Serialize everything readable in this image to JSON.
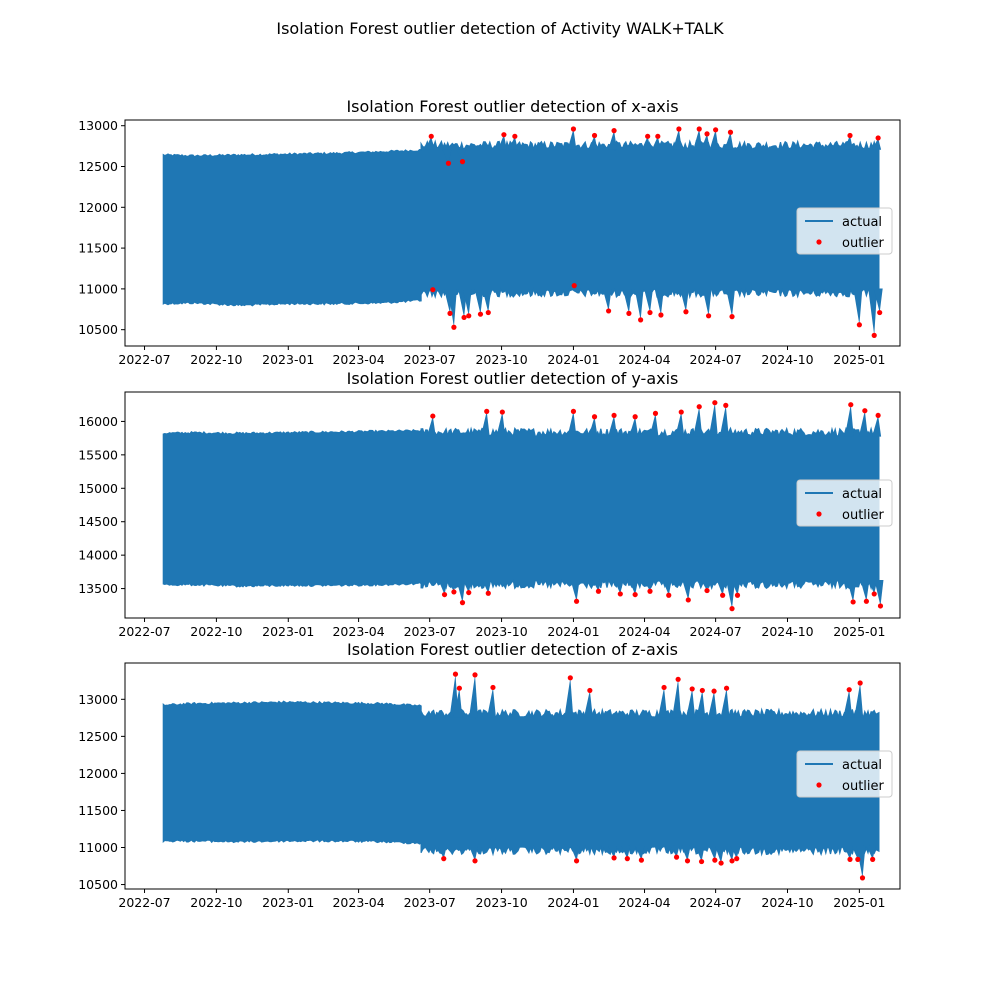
{
  "figure": {
    "title": "Isolation Forest outlier detection of Activity WALK+TALK"
  },
  "legend": {
    "actual_label": "actual",
    "outlier_label": "outlier",
    "placement": "center-right"
  },
  "colors": {
    "line": "#1f77b4",
    "outlier": "#ff0000"
  },
  "x_ticks": [
    "2022-07",
    "2022-10",
    "2023-01",
    "2023-04",
    "2023-07",
    "2023-10",
    "2024-01",
    "2024-04",
    "2024-07",
    "2024-10",
    "2025-01"
  ],
  "chart_data": [
    {
      "type": "line",
      "title": "Isolation Forest outlier detection of x-axis",
      "xlabel": "",
      "ylabel": "",
      "xlim": [
        "2022-06-06",
        "2025-02-22"
      ],
      "ylim": [
        10300,
        13070
      ],
      "y_ticks": [
        10500,
        11000,
        11500,
        12000,
        12500,
        13000
      ],
      "grid": false,
      "envelope": {
        "date": [
          "2022-07-25",
          "2022-09-01",
          "2022-11-01",
          "2023-01-01",
          "2023-03-01",
          "2023-05-01",
          "2023-06-20"
        ],
        "upper": [
          12640,
          12630,
          12640,
          12650,
          12660,
          12680,
          12700
        ],
        "lower": [
          10820,
          10830,
          10800,
          10820,
          10820,
          10830,
          10860
        ]
      },
      "envelope2": {
        "start": "2023-06-20",
        "end": "2025-01-26",
        "upper_base": 12760,
        "lower_base": 10950
      },
      "spikes_up": [
        {
          "date": "2023-07-03",
          "y": 12870
        },
        {
          "date": "2023-07-25",
          "y": 12540
        },
        {
          "date": "2023-08-12",
          "y": 12560
        },
        {
          "date": "2023-10-04",
          "y": 12890
        },
        {
          "date": "2023-10-18",
          "y": 12870
        },
        {
          "date": "2024-01-01",
          "y": 12960
        },
        {
          "date": "2024-01-28",
          "y": 12880
        },
        {
          "date": "2024-02-22",
          "y": 12940
        },
        {
          "date": "2024-04-05",
          "y": 12870
        },
        {
          "date": "2024-04-18",
          "y": 12870
        },
        {
          "date": "2024-05-15",
          "y": 12960
        },
        {
          "date": "2024-06-10",
          "y": 12960
        },
        {
          "date": "2024-06-20",
          "y": 12900
        },
        {
          "date": "2024-07-01",
          "y": 12950
        },
        {
          "date": "2024-07-20",
          "y": 12920
        },
        {
          "date": "2024-12-20",
          "y": 12880
        },
        {
          "date": "2025-01-25",
          "y": 12850
        }
      ],
      "spikes_down": [
        {
          "date": "2023-07-05",
          "y": 10990
        },
        {
          "date": "2023-07-27",
          "y": 10700
        },
        {
          "date": "2023-08-01",
          "y": 10530
        },
        {
          "date": "2023-08-14",
          "y": 10650
        },
        {
          "date": "2023-08-20",
          "y": 10670
        },
        {
          "date": "2023-09-04",
          "y": 10690
        },
        {
          "date": "2023-09-14",
          "y": 10710
        },
        {
          "date": "2024-01-02",
          "y": 11040
        },
        {
          "date": "2024-02-15",
          "y": 10730
        },
        {
          "date": "2024-03-12",
          "y": 10700
        },
        {
          "date": "2024-03-27",
          "y": 10620
        },
        {
          "date": "2024-04-08",
          "y": 10710
        },
        {
          "date": "2024-04-22",
          "y": 10680
        },
        {
          "date": "2024-05-24",
          "y": 10720
        },
        {
          "date": "2024-06-22",
          "y": 10670
        },
        {
          "date": "2024-07-22",
          "y": 10660
        },
        {
          "date": "2025-01-01",
          "y": 10560
        },
        {
          "date": "2025-01-20",
          "y": 10430
        },
        {
          "date": "2025-01-27",
          "y": 10710
        }
      ]
    },
    {
      "type": "line",
      "title": "Isolation Forest outlier detection of y-axis",
      "xlabel": "",
      "ylabel": "",
      "xlim": [
        "2022-06-06",
        "2025-02-22"
      ],
      "ylim": [
        13060,
        16440
      ],
      "y_ticks": [
        13500,
        14000,
        14500,
        15000,
        15500,
        16000
      ],
      "grid": false,
      "envelope": {
        "date": [
          "2022-07-25",
          "2022-09-01",
          "2022-11-01",
          "2023-01-01",
          "2023-03-01",
          "2023-05-01",
          "2023-06-20"
        ],
        "upper": [
          15820,
          15830,
          15820,
          15830,
          15840,
          15850,
          15860
        ],
        "lower": [
          13560,
          13560,
          13540,
          13550,
          13550,
          13560,
          13580
        ]
      },
      "envelope2": {
        "start": "2023-06-20",
        "end": "2025-01-26",
        "upper_base": 15840,
        "lower_base": 13560
      },
      "spikes_up": [
        {
          "date": "2023-07-05",
          "y": 16080
        },
        {
          "date": "2023-09-12",
          "y": 16150
        },
        {
          "date": "2023-10-02",
          "y": 16140
        },
        {
          "date": "2024-01-01",
          "y": 16150
        },
        {
          "date": "2024-01-28",
          "y": 16070
        },
        {
          "date": "2024-02-22",
          "y": 16090
        },
        {
          "date": "2024-03-20",
          "y": 16070
        },
        {
          "date": "2024-04-15",
          "y": 16120
        },
        {
          "date": "2024-05-18",
          "y": 16140
        },
        {
          "date": "2024-06-10",
          "y": 16220
        },
        {
          "date": "2024-06-30",
          "y": 16280
        },
        {
          "date": "2024-07-14",
          "y": 16240
        },
        {
          "date": "2024-12-21",
          "y": 16250
        },
        {
          "date": "2025-01-08",
          "y": 16160
        },
        {
          "date": "2025-01-25",
          "y": 16090
        }
      ],
      "spikes_down": [
        {
          "date": "2023-07-20",
          "y": 13410
        },
        {
          "date": "2023-08-01",
          "y": 13450
        },
        {
          "date": "2023-08-12",
          "y": 13290
        },
        {
          "date": "2023-08-20",
          "y": 13440
        },
        {
          "date": "2023-09-14",
          "y": 13430
        },
        {
          "date": "2024-01-05",
          "y": 13310
        },
        {
          "date": "2024-02-02",
          "y": 13460
        },
        {
          "date": "2024-03-01",
          "y": 13420
        },
        {
          "date": "2024-03-20",
          "y": 13410
        },
        {
          "date": "2024-04-08",
          "y": 13460
        },
        {
          "date": "2024-05-02",
          "y": 13400
        },
        {
          "date": "2024-05-27",
          "y": 13330
        },
        {
          "date": "2024-06-20",
          "y": 13470
        },
        {
          "date": "2024-07-10",
          "y": 13400
        },
        {
          "date": "2024-07-22",
          "y": 13200
        },
        {
          "date": "2024-07-29",
          "y": 13400
        },
        {
          "date": "2024-12-24",
          "y": 13300
        },
        {
          "date": "2025-01-10",
          "y": 13310
        },
        {
          "date": "2025-01-20",
          "y": 13420
        },
        {
          "date": "2025-01-28",
          "y": 13240
        }
      ]
    },
    {
      "type": "line",
      "title": "Isolation Forest outlier detection of z-axis",
      "xlabel": "",
      "ylabel": "",
      "xlim": [
        "2022-06-06",
        "2025-02-22"
      ],
      "ylim": [
        10440,
        13490
      ],
      "y_ticks": [
        10500,
        11000,
        11500,
        12000,
        12500,
        13000
      ],
      "grid": false,
      "envelope": {
        "date": [
          "2022-07-25",
          "2022-09-01",
          "2022-11-01",
          "2023-01-01",
          "2023-03-01",
          "2023-05-01",
          "2023-06-20"
        ],
        "upper": [
          12920,
          12940,
          12950,
          12960,
          12950,
          12940,
          12910
        ],
        "lower": [
          11090,
          11090,
          11080,
          11090,
          11090,
          11080,
          11060
        ]
      },
      "envelope2": {
        "start": "2023-06-20",
        "end": "2025-01-26",
        "upper_base": 12810,
        "lower_base": 10960
      },
      "spikes_up": [
        {
          "date": "2023-08-03",
          "y": 13340
        },
        {
          "date": "2023-08-08",
          "y": 13150
        },
        {
          "date": "2023-08-28",
          "y": 13330
        },
        {
          "date": "2023-09-20",
          "y": 13160
        },
        {
          "date": "2023-12-28",
          "y": 13290
        },
        {
          "date": "2024-01-22",
          "y": 13120
        },
        {
          "date": "2024-04-26",
          "y": 13160
        },
        {
          "date": "2024-05-14",
          "y": 13270
        },
        {
          "date": "2024-06-01",
          "y": 13140
        },
        {
          "date": "2024-06-14",
          "y": 13120
        },
        {
          "date": "2024-06-29",
          "y": 13110
        },
        {
          "date": "2024-07-15",
          "y": 13150
        },
        {
          "date": "2024-12-19",
          "y": 13130
        },
        {
          "date": "2025-01-02",
          "y": 13220
        }
      ],
      "spikes_down": [
        {
          "date": "2023-07-19",
          "y": 10850
        },
        {
          "date": "2023-08-28",
          "y": 10820
        },
        {
          "date": "2024-01-05",
          "y": 10820
        },
        {
          "date": "2024-02-22",
          "y": 10860
        },
        {
          "date": "2024-03-10",
          "y": 10850
        },
        {
          "date": "2024-03-28",
          "y": 10830
        },
        {
          "date": "2024-05-12",
          "y": 10870
        },
        {
          "date": "2024-05-26",
          "y": 10820
        },
        {
          "date": "2024-06-13",
          "y": 10810
        },
        {
          "date": "2024-06-30",
          "y": 10830
        },
        {
          "date": "2024-07-08",
          "y": 10790
        },
        {
          "date": "2024-07-22",
          "y": 10820
        },
        {
          "date": "2024-07-28",
          "y": 10850
        },
        {
          "date": "2024-12-20",
          "y": 10840
        },
        {
          "date": "2024-12-30",
          "y": 10840
        },
        {
          "date": "2025-01-05",
          "y": 10590
        },
        {
          "date": "2025-01-18",
          "y": 10840
        }
      ]
    }
  ]
}
